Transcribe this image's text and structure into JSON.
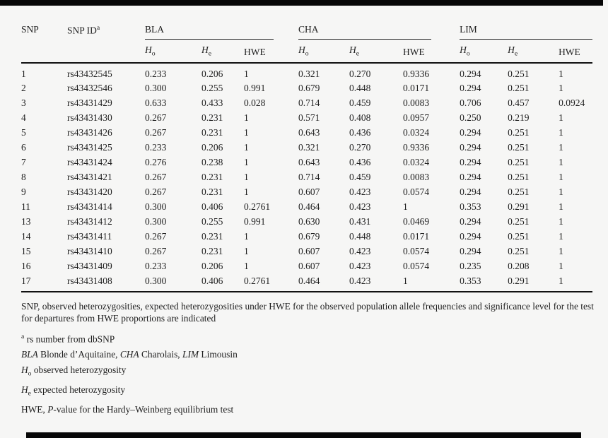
{
  "bars": {
    "color": "#070707"
  },
  "table": {
    "header": {
      "snp": "SNP",
      "snp_id": "SNP ID",
      "snp_id_sup": "a"
    },
    "groups": [
      {
        "label": "BLA"
      },
      {
        "label": "CHA"
      },
      {
        "label": "LIM"
      }
    ],
    "sub": {
      "h": "H",
      "o": "o",
      "e": "e",
      "hwe": "HWE"
    },
    "rows": [
      {
        "cells": [
          "1",
          "rs43432545",
          "0.233",
          "0.206",
          "1",
          "0.321",
          "0.270",
          "0.9336",
          "0.294",
          "0.251",
          "1"
        ]
      },
      {
        "cells": [
          "2",
          "rs43432546",
          "0.300",
          "0.255",
          "0.991",
          "0.679",
          "0.448",
          "0.0171",
          "0.294",
          "0.251",
          "1"
        ]
      },
      {
        "cells": [
          "3",
          "rs43431429",
          "0.633",
          "0.433",
          "0.028",
          "0.714",
          "0.459",
          "0.0083",
          "0.706",
          "0.457",
          "0.0924"
        ]
      },
      {
        "cells": [
          "4",
          "rs43431430",
          "0.267",
          "0.231",
          "1",
          "0.571",
          "0.408",
          "0.0957",
          "0.250",
          "0.219",
          "1"
        ]
      },
      {
        "cells": [
          "5",
          "rs43431426",
          "0.267",
          "0.231",
          "1",
          "0.643",
          "0.436",
          "0.0324",
          "0.294",
          "0.251",
          "1"
        ]
      },
      {
        "cells": [
          "6",
          "rs43431425",
          "0.233",
          "0.206",
          "1",
          "0.321",
          "0.270",
          "0.9336",
          "0.294",
          "0.251",
          "1"
        ]
      },
      {
        "cells": [
          "7",
          "rs43431424",
          "0.276",
          "0.238",
          "1",
          "0.643",
          "0.436",
          "0.0324",
          "0.294",
          "0.251",
          "1"
        ]
      },
      {
        "cells": [
          "8",
          "rs43431421",
          "0.267",
          "0.231",
          "1",
          "0.714",
          "0.459",
          "0.0083",
          "0.294",
          "0.251",
          "1"
        ]
      },
      {
        "cells": [
          "9",
          "rs43431420",
          "0.267",
          "0.231",
          "1",
          "0.607",
          "0.423",
          "0.0574",
          "0.294",
          "0.251",
          "1"
        ]
      },
      {
        "cells": [
          "11",
          "rs43431414",
          "0.300",
          "0.406",
          "0.2761",
          "0.464",
          "0.423",
          "1",
          "0.353",
          "0.291",
          "1"
        ]
      },
      {
        "cells": [
          "13",
          "rs43431412",
          "0.300",
          "0.255",
          "0.991",
          "0.630",
          "0.431",
          "0.0469",
          "0.294",
          "0.251",
          "1"
        ]
      },
      {
        "cells": [
          "14",
          "rs43431411",
          "0.267",
          "0.231",
          "1",
          "0.679",
          "0.448",
          "0.0171",
          "0.294",
          "0.251",
          "1"
        ]
      },
      {
        "cells": [
          "15",
          "rs43431410",
          "0.267",
          "0.231",
          "1",
          "0.607",
          "0.423",
          "0.0574",
          "0.294",
          "0.251",
          "1"
        ]
      },
      {
        "cells": [
          "16",
          "rs43431409",
          "0.233",
          "0.206",
          "1",
          "0.607",
          "0.423",
          "0.0574",
          "0.235",
          "0.208",
          "1"
        ]
      },
      {
        "cells": [
          "17",
          "rs43431408",
          "0.300",
          "0.406",
          "0.2761",
          "0.464",
          "0.423",
          "1",
          "0.353",
          "0.291",
          "1"
        ]
      }
    ]
  },
  "footnotes": {
    "description": "SNP, observed heterozygosities, expected heterozygosities under HWE for the observed population allele frequencies and significance level for the test for departures from HWE proportions are indicated",
    "dbsnp_sup": "a",
    "dbsnp_text": " rs number from dbSNP",
    "breeds": {
      "bla": "BLA",
      "bla_text": " Blonde d’Aquitaine, ",
      "cha": "CHA",
      "cha_text": " Charolais, ",
      "lim": "LIM",
      "lim_text": " Limousin"
    },
    "ho": {
      "sym": "H",
      "sub": "o",
      "text": " observed heterozygosity"
    },
    "he": {
      "sym": "H",
      "sub": "e",
      "text": " expected heterozygosity"
    },
    "hwe": {
      "prefix": "HWE, ",
      "p": "P",
      "text": "-value for the Hardy–Weinberg equilibrium test"
    }
  }
}
